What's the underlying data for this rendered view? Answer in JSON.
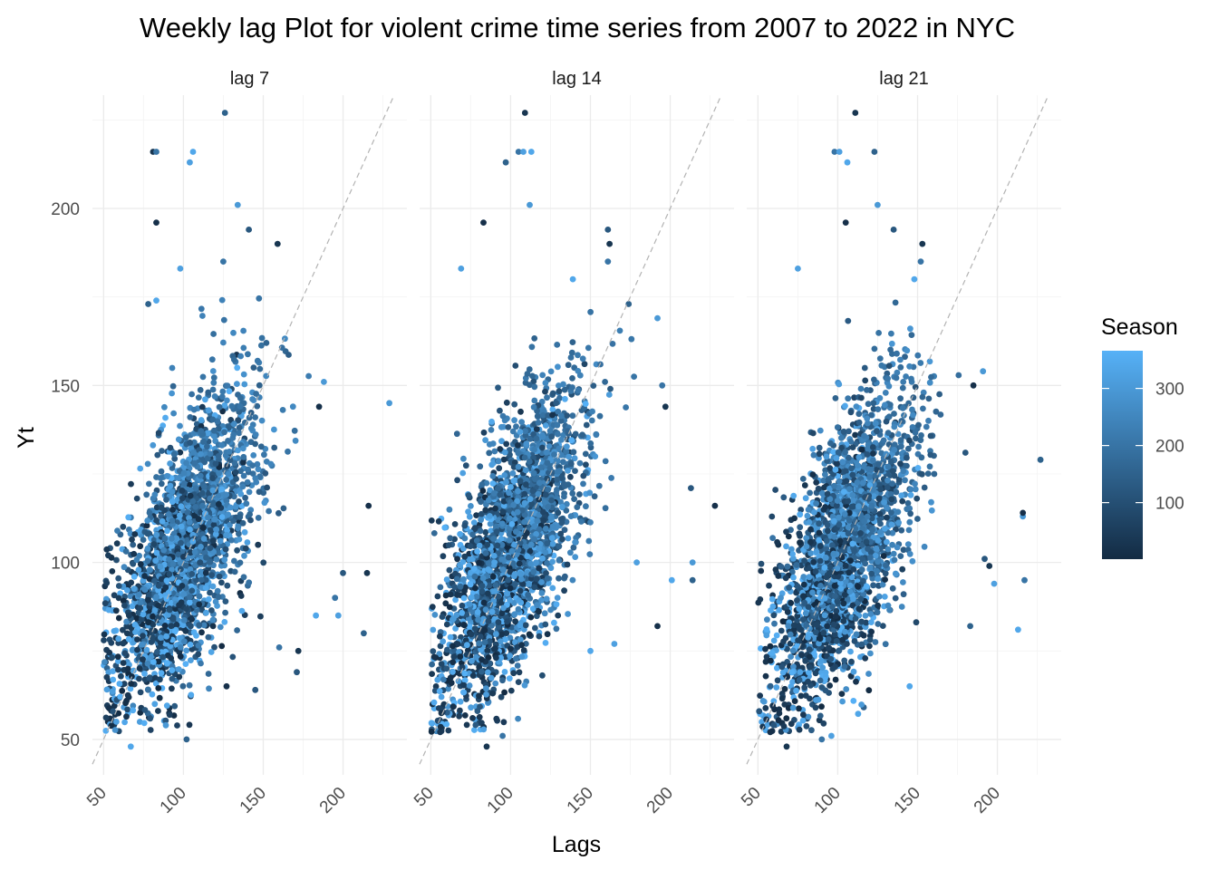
{
  "chart_data": {
    "type": "scatter",
    "title": "Weekly lag Plot for violent crime time series from 2007 to 2022 in NYC",
    "xlabel": "Lags",
    "ylabel": "Yt",
    "xlim": [
      43,
      240
    ],
    "ylim": [
      40,
      232
    ],
    "x_ticks": [
      50,
      100,
      150,
      200
    ],
    "y_ticks": [
      50,
      100,
      150,
      200
    ],
    "reference_line": "y = x (dashed)",
    "grid": true,
    "legend": {
      "title": "Season",
      "position": "right",
      "type": "continuous",
      "range": [
        1,
        366
      ],
      "ticks": [
        100,
        200,
        300
      ],
      "color_low": "#132B43",
      "color_high": "#56B1F7"
    },
    "panels": [
      {
        "label": "lag 7",
        "points_summary": "dense cloud centered near (100, 105), correlation ~0.6",
        "outliers": [
          {
            "x": 81,
            "y": 216
          },
          {
            "x": 83,
            "y": 216
          },
          {
            "x": 104,
            "y": 213
          },
          {
            "x": 106,
            "y": 216
          },
          {
            "x": 126,
            "y": 227
          },
          {
            "x": 134,
            "y": 201
          },
          {
            "x": 83,
            "y": 196
          },
          {
            "x": 141,
            "y": 194
          },
          {
            "x": 159,
            "y": 190
          },
          {
            "x": 125,
            "y": 185
          },
          {
            "x": 98,
            "y": 183
          },
          {
            "x": 83,
            "y": 174
          },
          {
            "x": 78,
            "y": 173
          },
          {
            "x": 229,
            "y": 145
          },
          {
            "x": 216,
            "y": 116
          },
          {
            "x": 200,
            "y": 97
          },
          {
            "x": 215,
            "y": 97
          },
          {
            "x": 195,
            "y": 90
          },
          {
            "x": 197,
            "y": 85
          },
          {
            "x": 183,
            "y": 85
          },
          {
            "x": 213,
            "y": 80
          },
          {
            "x": 188,
            "y": 151
          },
          {
            "x": 185,
            "y": 144
          },
          {
            "x": 171,
            "y": 69
          },
          {
            "x": 172,
            "y": 75
          },
          {
            "x": 160,
            "y": 76
          },
          {
            "x": 58,
            "y": 55
          },
          {
            "x": 67,
            "y": 48
          },
          {
            "x": 102,
            "y": 50
          },
          {
            "x": 89,
            "y": 54
          },
          {
            "x": 127,
            "y": 65
          },
          {
            "x": 145,
            "y": 64
          }
        ]
      },
      {
        "label": "lag 14",
        "points_summary": "dense cloud centered near (100, 105), correlation ~0.55",
        "outliers": [
          {
            "x": 109,
            "y": 227
          },
          {
            "x": 105,
            "y": 216
          },
          {
            "x": 108,
            "y": 216
          },
          {
            "x": 113,
            "y": 216
          },
          {
            "x": 97,
            "y": 213
          },
          {
            "x": 112,
            "y": 201
          },
          {
            "x": 83,
            "y": 196
          },
          {
            "x": 161,
            "y": 194
          },
          {
            "x": 162,
            "y": 190
          },
          {
            "x": 161,
            "y": 185
          },
          {
            "x": 69,
            "y": 183
          },
          {
            "x": 139,
            "y": 180
          },
          {
            "x": 174,
            "y": 173
          },
          {
            "x": 192,
            "y": 169
          },
          {
            "x": 228,
            "y": 116
          },
          {
            "x": 213,
            "y": 121
          },
          {
            "x": 197,
            "y": 144
          },
          {
            "x": 195,
            "y": 150
          },
          {
            "x": 179,
            "y": 100
          },
          {
            "x": 201,
            "y": 95
          },
          {
            "x": 214,
            "y": 95
          },
          {
            "x": 214,
            "y": 100
          },
          {
            "x": 192,
            "y": 82
          },
          {
            "x": 60,
            "y": 70
          },
          {
            "x": 85,
            "y": 48
          },
          {
            "x": 95,
            "y": 51
          },
          {
            "x": 165,
            "y": 77
          },
          {
            "x": 150,
            "y": 75
          }
        ]
      },
      {
        "label": "lag 21",
        "points_summary": "dense cloud centered near (105, 105), correlation ~0.6",
        "outliers": [
          {
            "x": 111,
            "y": 227
          },
          {
            "x": 98,
            "y": 216
          },
          {
            "x": 101,
            "y": 216
          },
          {
            "x": 106,
            "y": 213
          },
          {
            "x": 123,
            "y": 216
          },
          {
            "x": 125,
            "y": 201
          },
          {
            "x": 105,
            "y": 196
          },
          {
            "x": 135,
            "y": 194
          },
          {
            "x": 153,
            "y": 190
          },
          {
            "x": 152,
            "y": 185
          },
          {
            "x": 75,
            "y": 183
          },
          {
            "x": 148,
            "y": 180
          },
          {
            "x": 227,
            "y": 129
          },
          {
            "x": 216,
            "y": 113
          },
          {
            "x": 216,
            "y": 114
          },
          {
            "x": 192,
            "y": 101
          },
          {
            "x": 195,
            "y": 99
          },
          {
            "x": 217,
            "y": 95
          },
          {
            "x": 198,
            "y": 94
          },
          {
            "x": 213,
            "y": 81
          },
          {
            "x": 183,
            "y": 82
          },
          {
            "x": 191,
            "y": 154
          },
          {
            "x": 185,
            "y": 150
          },
          {
            "x": 180,
            "y": 131
          },
          {
            "x": 68,
            "y": 48
          },
          {
            "x": 90,
            "y": 50
          },
          {
            "x": 96,
            "y": 51
          },
          {
            "x": 145,
            "y": 65
          }
        ]
      }
    ]
  }
}
